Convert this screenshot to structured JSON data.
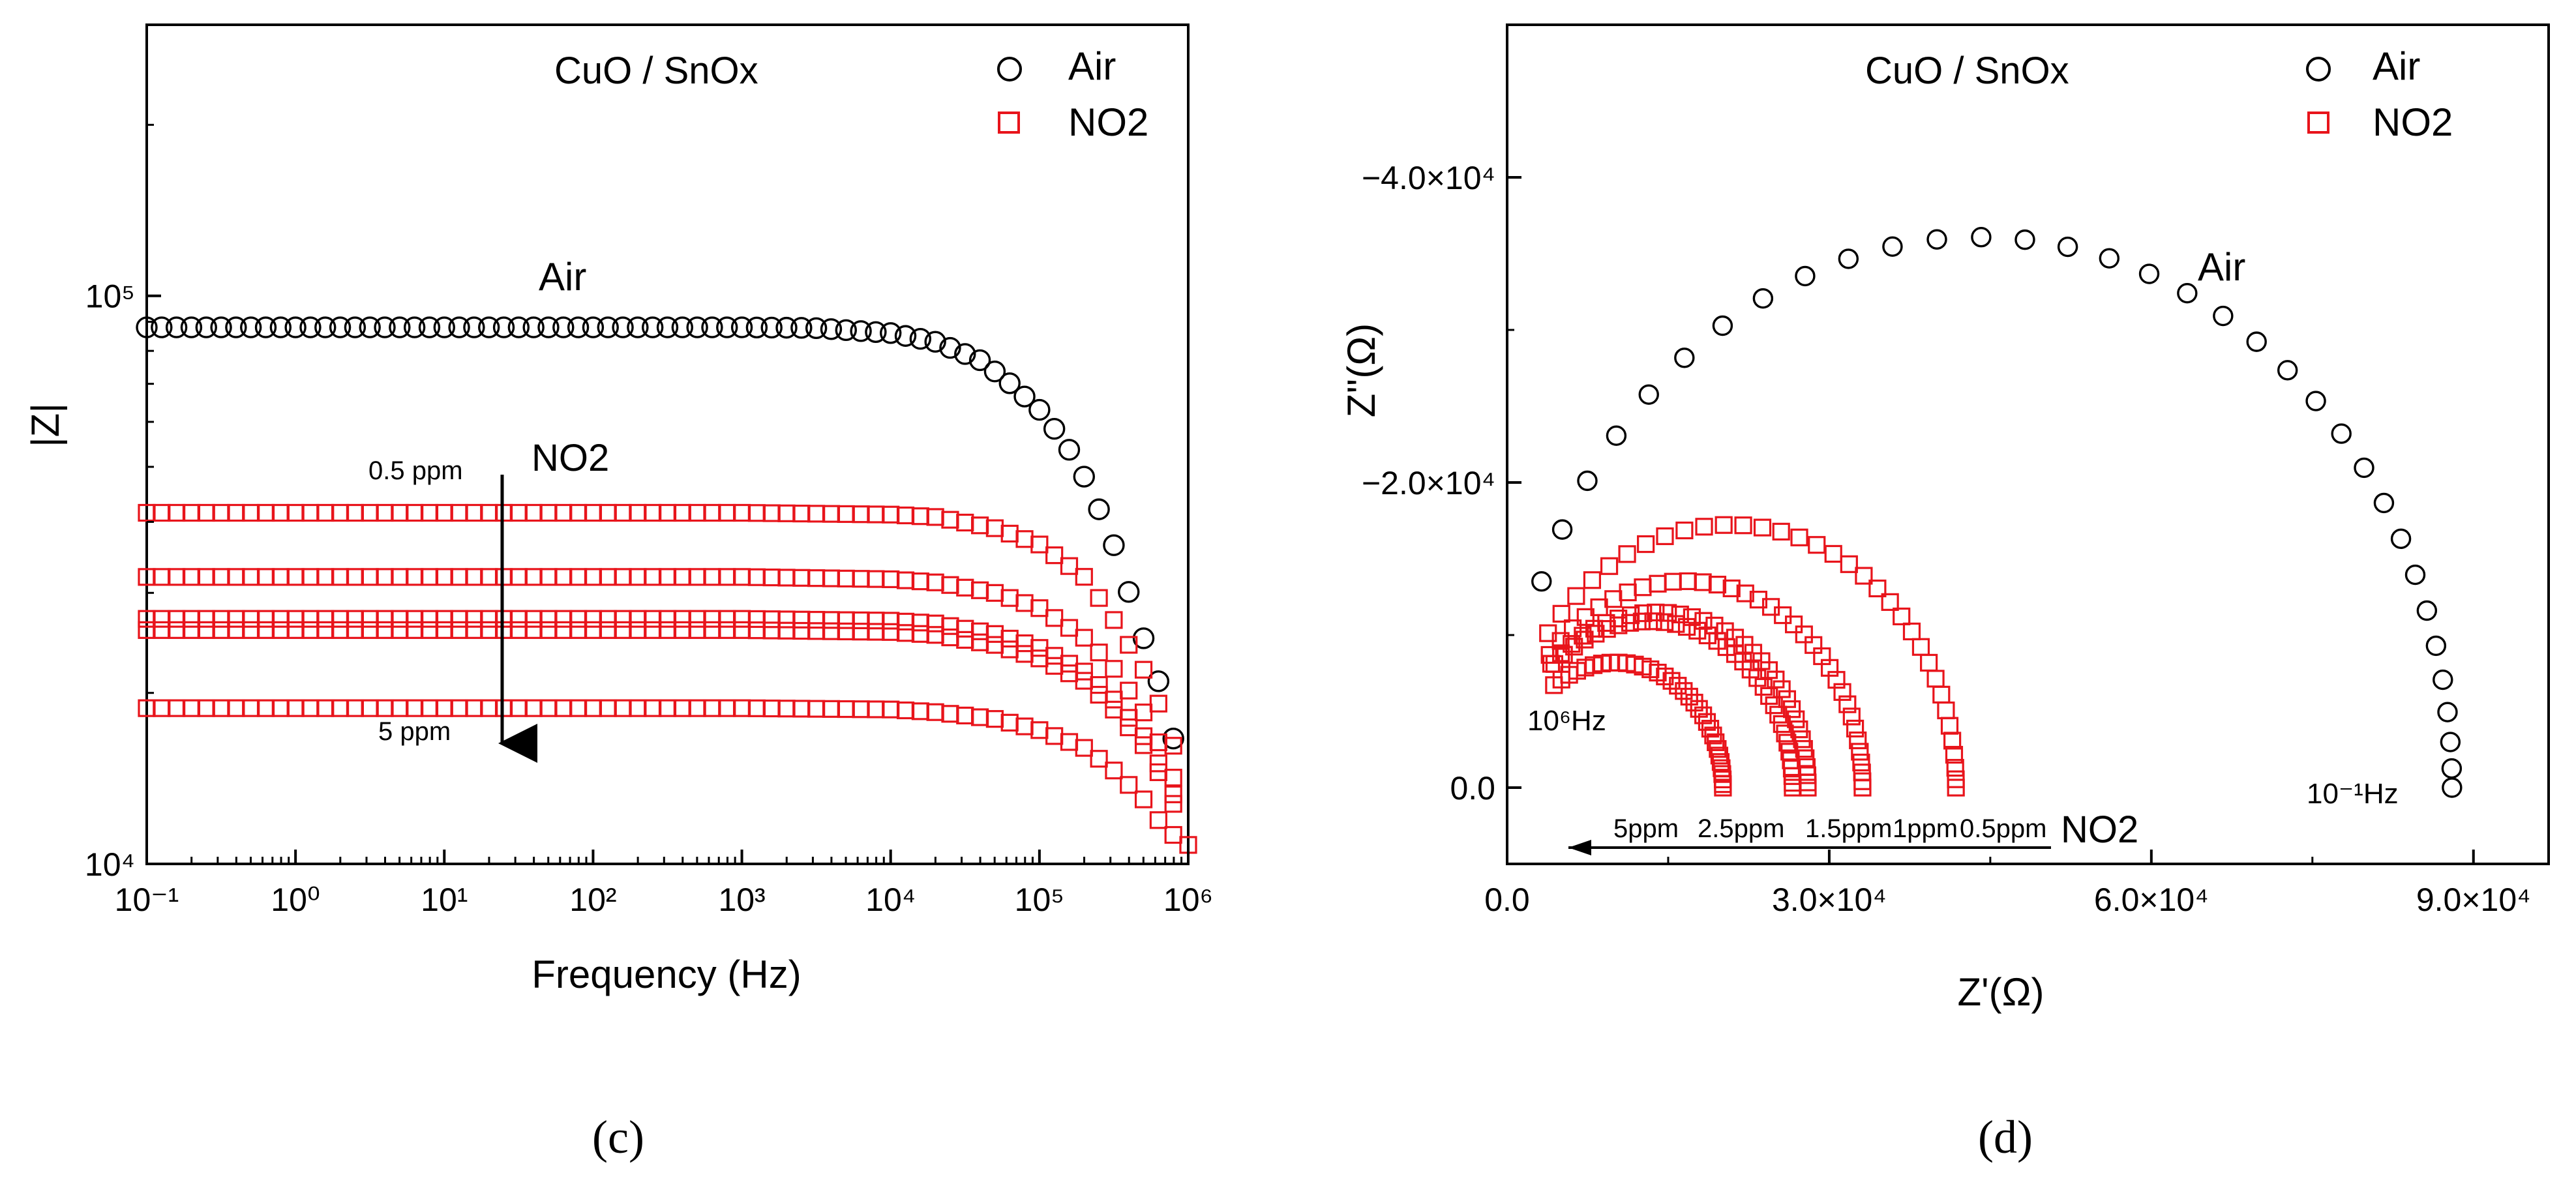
{
  "chart_data": [
    {
      "panel_label": "(c)",
      "type": "scatter",
      "title": "CuO / SnOx",
      "xlabel": "Frequency (Hz)",
      "ylabel": "|Z|",
      "x_scale": "log",
      "y_scale": "log",
      "xlim": [
        0.1,
        1000000
      ],
      "ylim": [
        10000,
        300000
      ],
      "x_ticks": [
        "10⁻¹",
        "10⁰",
        "10¹",
        "10²",
        "10³",
        "10⁴",
        "10⁵",
        "10⁶"
      ],
      "y_ticks": [
        "10⁴",
        "10⁵"
      ],
      "grid": false,
      "legend": {
        "placement": "top-right",
        "entries": [
          {
            "label": "Air",
            "marker": "circle",
            "color": "#000000"
          },
          {
            "label": "NO2",
            "marker": "square",
            "color": "#e8141b"
          }
        ]
      },
      "annotations": [
        {
          "text": "Air"
        },
        {
          "text": "NO2"
        },
        {
          "text": "0.5 ppm"
        },
        {
          "text": "5 ppm"
        }
      ],
      "series": [
        {
          "legend_group": "Air",
          "marker": "circle",
          "color": "#000000",
          "points": [
            [
              0.1,
              88000
            ],
            [
              1,
              88000
            ],
            [
              10,
              88000
            ],
            [
              100,
              88000
            ],
            [
              1000,
              88000
            ],
            [
              3000,
              87800
            ],
            [
              10000,
              86000
            ],
            [
              20000,
              83000
            ],
            [
              40000,
              77000
            ],
            [
              60000,
              71000
            ],
            [
              100000,
              63000
            ],
            [
              150000,
              55000
            ],
            [
              200000,
              48000
            ],
            [
              300000,
              38000
            ],
            [
              400000,
              30000
            ],
            [
              500000,
              25000
            ],
            [
              650000,
              20500
            ],
            [
              800000,
              16500
            ]
          ]
        },
        {
          "legend_group": "NO2",
          "marker": "square",
          "color": "#e8141b",
          "points": [
            [
              0.1,
              41500
            ],
            [
              10,
              41500
            ],
            [
              1000,
              41500
            ],
            [
              10000,
              41200
            ],
            [
              20000,
              40800
            ],
            [
              50000,
              39000
            ],
            [
              100000,
              36500
            ],
            [
              200000,
              32000
            ],
            [
              300000,
              27500
            ],
            [
              500000,
              22000
            ],
            [
              700000,
              18000
            ],
            [
              900000,
              14500
            ]
          ]
        },
        {
          "legend_group": "NO2",
          "marker": "square",
          "color": "#e8141b",
          "points": [
            [
              0.1,
              32000
            ],
            [
              10,
              32000
            ],
            [
              1000,
              32000
            ],
            [
              10000,
              31700
            ],
            [
              20000,
              31300
            ],
            [
              50000,
              30000
            ],
            [
              100000,
              28200
            ],
            [
              200000,
              25000
            ],
            [
              300000,
              22500
            ],
            [
              500000,
              18500
            ],
            [
              700000,
              15500
            ],
            [
              900000,
              13000
            ]
          ]
        },
        {
          "legend_group": "NO2",
          "marker": "square",
          "color": "#e8141b",
          "points": [
            [
              0.1,
              27000
            ],
            [
              10,
              27000
            ],
            [
              1000,
              27000
            ],
            [
              10000,
              26800
            ],
            [
              20000,
              26500
            ],
            [
              50000,
              25400
            ],
            [
              100000,
              24000
            ],
            [
              200000,
              21800
            ],
            [
              300000,
              19800
            ],
            [
              500000,
              16800
            ],
            [
              700000,
              14300
            ],
            [
              900000,
              12300
            ]
          ]
        },
        {
          "legend_group": "NO2",
          "marker": "square",
          "color": "#e8141b",
          "points": [
            [
              0.1,
              25800
            ],
            [
              10,
              25800
            ],
            [
              1000,
              25800
            ],
            [
              10000,
              25600
            ],
            [
              20000,
              25300
            ],
            [
              50000,
              24300
            ],
            [
              100000,
              23000
            ],
            [
              200000,
              21000
            ],
            [
              300000,
              19000
            ],
            [
              500000,
              16200
            ],
            [
              700000,
              13800
            ],
            [
              900000,
              11800
            ]
          ]
        },
        {
          "legend_group": "NO2",
          "marker": "square",
          "color": "#e8141b",
          "points": [
            [
              0.1,
              18800
            ],
            [
              10,
              18800
            ],
            [
              1000,
              18800
            ],
            [
              10000,
              18700
            ],
            [
              20000,
              18500
            ],
            [
              50000,
              18000
            ],
            [
              100000,
              17200
            ],
            [
              200000,
              16000
            ],
            [
              300000,
              14800
            ],
            [
              500000,
              13000
            ],
            [
              700000,
              11500
            ],
            [
              1000000,
              10800
            ]
          ]
        }
      ]
    },
    {
      "panel_label": "(d)",
      "type": "scatter",
      "title": "CuO / SnOx",
      "xlabel": "Z'(Ω)",
      "ylabel": "Z''(Ω)",
      "xlim": [
        0,
        97000
      ],
      "ylim": [
        5000,
        -50000
      ],
      "x_ticks": [
        "0.0",
        "3.0×10⁴",
        "6.0×10⁴",
        "9.0×10⁴"
      ],
      "y_ticks": [
        "0.0",
        "−2.0×10⁴",
        "−4.0×10⁴"
      ],
      "grid": false,
      "legend": {
        "placement": "top-right",
        "entries": [
          {
            "label": "Air",
            "marker": "circle",
            "color": "#000000"
          },
          {
            "label": "NO2",
            "marker": "square",
            "color": "#e8141b"
          }
        ]
      },
      "annotations": [
        {
          "text": "Air"
        },
        {
          "text": "10⁶Hz"
        },
        {
          "text": "10⁻¹Hz"
        },
        {
          "text": "5ppm"
        },
        {
          "text": "2.5ppm"
        },
        {
          "text": "1.5ppm"
        },
        {
          "text": "1ppm"
        },
        {
          "text": "0.5ppm"
        },
        {
          "text": "NO2"
        }
      ],
      "series": [
        {
          "legend_group": "Air",
          "marker": "circle",
          "color": "#000000",
          "shape": "semicircle",
          "center": 44000,
          "radius": 44000,
          "height_factor": 0.82,
          "theta_start": 158,
          "points_count": 34
        },
        {
          "legend_group": "NO2",
          "marker": "square",
          "color": "#e8141b",
          "shape": "semicircle",
          "center": 20800,
          "radius": 21000,
          "height_factor": 0.82,
          "theta_start": 144,
          "points_count": 34,
          "note_ppm": "0.5ppm"
        },
        {
          "legend_group": "NO2",
          "marker": "square",
          "color": "#e8141b",
          "shape": "semicircle",
          "center": 16600,
          "radius": 16500,
          "height_factor": 0.82,
          "theta_start": 140,
          "points_count": 34,
          "note_ppm": "1ppm"
        },
        {
          "legend_group": "NO2",
          "marker": "square",
          "color": "#e8141b",
          "shape": "semicircle",
          "center": 14000,
          "radius": 14000,
          "height_factor": 0.82,
          "theta_start": 135,
          "points_count": 34,
          "note_ppm": "1.5ppm"
        },
        {
          "legend_group": "NO2",
          "marker": "square",
          "color": "#e8141b",
          "shape": "semicircle",
          "center": 13300,
          "radius": 13300,
          "height_factor": 0.82,
          "theta_start": 132,
          "points_count": 34,
          "note_ppm": "2.5ppm"
        },
        {
          "legend_group": "NO2",
          "marker": "square",
          "color": "#e8141b",
          "shape": "semicircle",
          "center": 10100,
          "radius": 10000,
          "height_factor": 0.82,
          "theta_start": 125,
          "points_count": 34,
          "note_ppm": "5ppm"
        }
      ]
    }
  ]
}
